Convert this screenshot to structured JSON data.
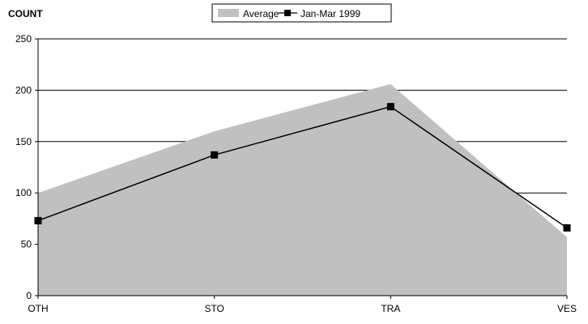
{
  "chart_data": {
    "type": "area",
    "ylabel": "COUNT",
    "categories": [
      "OTH",
      "STO",
      "TRA",
      "VES"
    ],
    "ylim": [
      0,
      250
    ],
    "yticks": [
      0,
      50,
      100,
      150,
      200,
      250
    ],
    "grid": true,
    "legend_position": "top-center",
    "series": [
      {
        "name": "Average",
        "type": "area",
        "values": [
          100,
          160,
          206,
          57
        ],
        "color": "#c0c0c0"
      },
      {
        "name": "Jan-Mar 1999",
        "type": "line",
        "marker": "square",
        "values": [
          73,
          137,
          184,
          66
        ],
        "color": "#000000"
      }
    ]
  }
}
